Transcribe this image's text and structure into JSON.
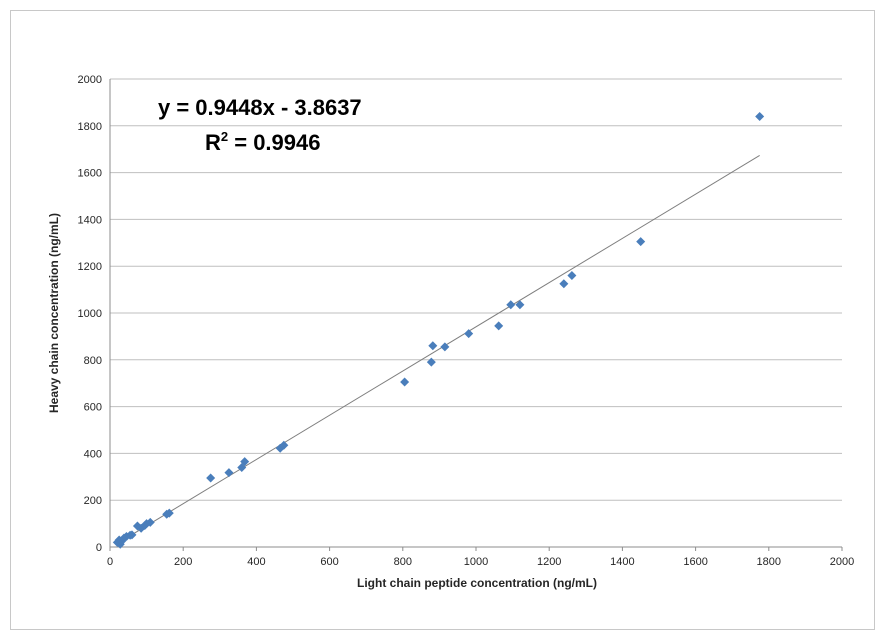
{
  "chart_data": {
    "type": "scatter",
    "xlabel": "Light chain peptide concentration (ng/mL)",
    "ylabel": "Heavy chain concentration (ng/mL)",
    "xlim": [
      0,
      2000
    ],
    "ylim": [
      0,
      2000
    ],
    "xticks": [
      0,
      200,
      400,
      600,
      800,
      1000,
      1200,
      1400,
      1600,
      1800,
      2000
    ],
    "yticks": [
      0,
      200,
      400,
      600,
      800,
      1000,
      1200,
      1400,
      1600,
      1800,
      2000
    ],
    "grid": "horizontal",
    "marker": "diamond",
    "marker_color": "#4a7ebb",
    "trendline_color": "#7f7f7f",
    "annotations": {
      "equation": "y = 0.9448x - 3.8637",
      "r2_prefix": "R",
      "r2_sup": "2",
      "r2_suffix": " = 0.9946"
    },
    "trendline": {
      "slope": 0.9448,
      "intercept": -3.8637,
      "x_range": [
        20,
        1775
      ]
    },
    "points": [
      {
        "x": 20,
        "y": 20
      },
      {
        "x": 25,
        "y": 30
      },
      {
        "x": 28,
        "y": 12
      },
      {
        "x": 32,
        "y": 25
      },
      {
        "x": 38,
        "y": 38
      },
      {
        "x": 45,
        "y": 45
      },
      {
        "x": 55,
        "y": 50
      },
      {
        "x": 60,
        "y": 52
      },
      {
        "x": 75,
        "y": 90
      },
      {
        "x": 85,
        "y": 80
      },
      {
        "x": 95,
        "y": 92
      },
      {
        "x": 100,
        "y": 100
      },
      {
        "x": 110,
        "y": 105
      },
      {
        "x": 155,
        "y": 140
      },
      {
        "x": 162,
        "y": 145
      },
      {
        "x": 275,
        "y": 295
      },
      {
        "x": 325,
        "y": 318
      },
      {
        "x": 360,
        "y": 340
      },
      {
        "x": 368,
        "y": 365
      },
      {
        "x": 465,
        "y": 422
      },
      {
        "x": 475,
        "y": 435
      },
      {
        "x": 805,
        "y": 705
      },
      {
        "x": 878,
        "y": 790
      },
      {
        "x": 882,
        "y": 860
      },
      {
        "x": 915,
        "y": 855
      },
      {
        "x": 980,
        "y": 912
      },
      {
        "x": 1062,
        "y": 945
      },
      {
        "x": 1095,
        "y": 1035
      },
      {
        "x": 1120,
        "y": 1035
      },
      {
        "x": 1240,
        "y": 1125
      },
      {
        "x": 1262,
        "y": 1160
      },
      {
        "x": 1450,
        "y": 1305
      },
      {
        "x": 1775,
        "y": 1840
      }
    ]
  }
}
